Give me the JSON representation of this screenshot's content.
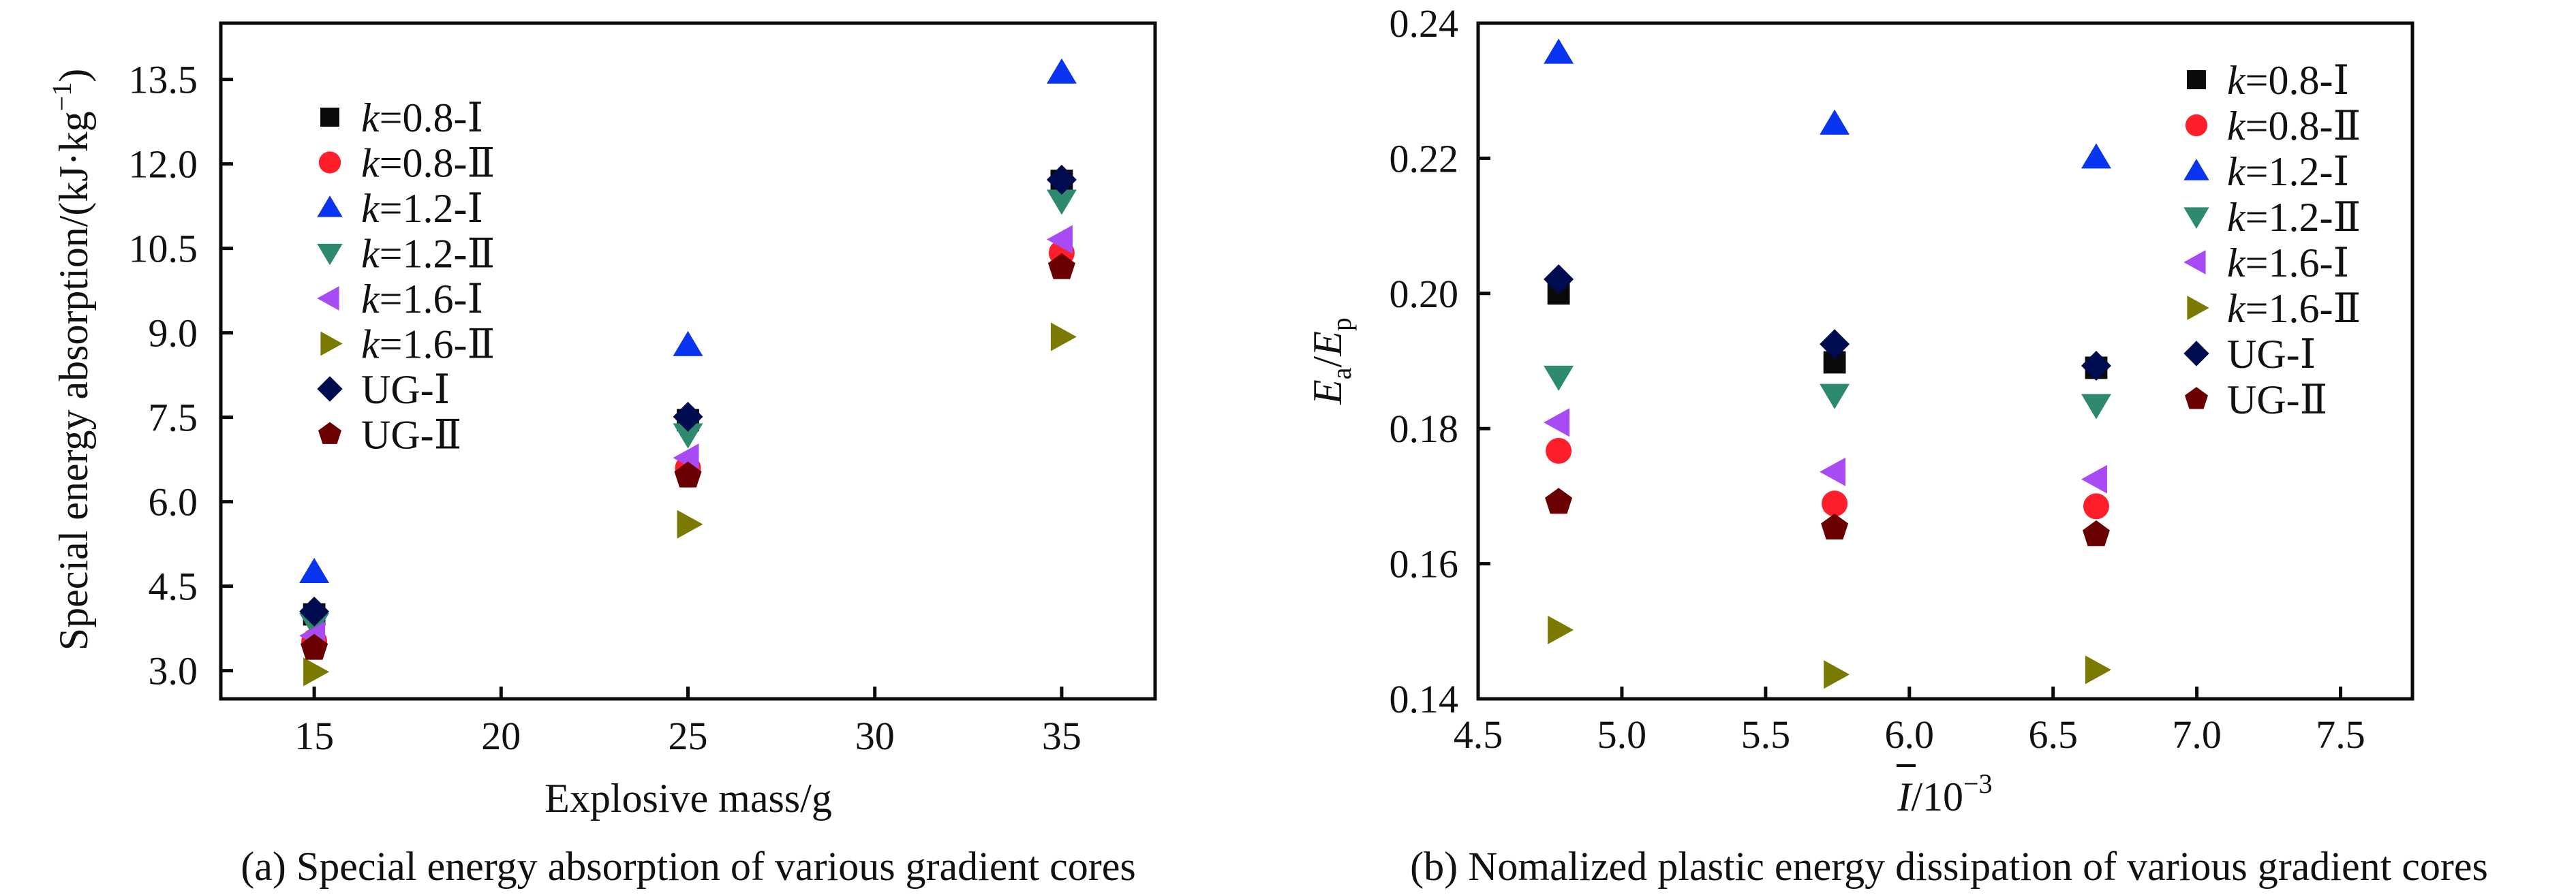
{
  "figure": {
    "captions": {
      "a": "(a) Special energy absorption of various gradient cores",
      "b": "(b) Nomalized plastic energy dissipation of various gradient cores"
    }
  },
  "series_styles": [
    {
      "name": "k=0.8-Ⅰ",
      "k_prefix": "k",
      "rest": "=0.8-Ⅰ",
      "marker": "square",
      "color": "#0a0a0a"
    },
    {
      "name": "k=0.8-Ⅱ",
      "k_prefix": "k",
      "rest": "=0.8-Ⅱ",
      "marker": "circle",
      "color": "#ff1f2a"
    },
    {
      "name": "k=1.2-Ⅰ",
      "k_prefix": "k",
      "rest": "=1.2-Ⅰ",
      "marker": "triangle-up",
      "color": "#0a35f0"
    },
    {
      "name": "k=1.2-Ⅱ",
      "k_prefix": "k",
      "rest": "=1.2-Ⅱ",
      "marker": "triangle-down",
      "color": "#2e8a6e"
    },
    {
      "name": "k=1.6-Ⅰ",
      "k_prefix": "k",
      "rest": "=1.6-Ⅰ",
      "marker": "triangle-left",
      "color": "#a84bf5"
    },
    {
      "name": "k=1.6-Ⅱ",
      "k_prefix": "k",
      "rest": "=1.6-Ⅱ",
      "marker": "triangle-right",
      "color": "#7a7a00"
    },
    {
      "name": "UG-Ⅰ",
      "k_prefix": "",
      "rest": "UG-Ⅰ",
      "marker": "diamond",
      "color": "#000c50"
    },
    {
      "name": "UG-Ⅱ",
      "k_prefix": "",
      "rest": "UG-Ⅱ",
      "marker": "pentagon",
      "color": "#6a0000"
    }
  ],
  "chart_data": [
    {
      "id": "a",
      "type": "scatter",
      "title": "",
      "caption": "(a) Special energy absorption of various gradient cores",
      "xlabel": "Explosive mass/g",
      "ylabel": "Special energy absorption/(kJ·kg⁻¹)",
      "xlim": [
        12.5,
        37.5
      ],
      "ylim": [
        2.5,
        14.5
      ],
      "xticks": [
        15,
        20,
        25,
        30,
        35
      ],
      "xtick_labels": [
        "15",
        "20",
        "25",
        "30",
        "35"
      ],
      "yticks": [
        3.0,
        4.5,
        6.0,
        7.5,
        9.0,
        10.5,
        12.0,
        13.5
      ],
      "ytick_labels": [
        "3.0",
        "4.5",
        "6.0",
        "7.5",
        "9.0",
        "10.5",
        "12.0",
        "13.5"
      ],
      "grid": false,
      "legend_position": "top-left",
      "x": [
        15,
        25,
        35
      ],
      "series": [
        {
          "name": "k=0.8-Ⅰ",
          "values": [
            4.0,
            7.45,
            11.7
          ]
        },
        {
          "name": "k=0.8-Ⅱ",
          "values": [
            3.52,
            6.6,
            10.42
          ]
        },
        {
          "name": "k=1.2-Ⅰ",
          "values": [
            4.75,
            8.78,
            13.62
          ]
        },
        {
          "name": "k=1.2-Ⅱ",
          "values": [
            3.83,
            7.2,
            11.35
          ]
        },
        {
          "name": "k=1.6-Ⅰ",
          "values": [
            3.62,
            6.78,
            10.66
          ]
        },
        {
          "name": "k=1.6-Ⅱ",
          "values": [
            2.98,
            5.6,
            8.93
          ]
        },
        {
          "name": "UG-Ⅰ",
          "values": [
            4.05,
            7.51,
            11.72
          ]
        },
        {
          "name": "UG-Ⅱ",
          "values": [
            3.4,
            6.46,
            10.16
          ]
        }
      ]
    },
    {
      "id": "b",
      "type": "scatter",
      "title": "",
      "caption": "(b) Nomalized plastic energy dissipation of various gradient cores",
      "xlabel": "Ī/10⁻³",
      "ylabel": "Ea/Ep",
      "xlim": [
        4.5,
        7.75
      ],
      "ylim": [
        0.14,
        0.24
      ],
      "xticks": [
        4.5,
        5.0,
        5.5,
        6.0,
        6.5,
        7.0,
        7.5
      ],
      "xtick_labels": [
        "4.5",
        "5.0",
        "5.5",
        "6.0",
        "6.5",
        "7.0",
        "7.5"
      ],
      "yticks": [
        0.14,
        0.16,
        0.18,
        0.2,
        0.22,
        0.24
      ],
      "ytick_labels": [
        "0.14",
        "0.16",
        "0.18",
        "0.20",
        "0.22",
        "0.24"
      ],
      "grid": false,
      "legend_position": "top-right",
      "x": [
        4.78,
        5.74,
        6.65
      ],
      "series": [
        {
          "name": "k=0.8-Ⅰ",
          "values": [
            0.2,
            0.1898,
            0.189
          ]
        },
        {
          "name": "k=0.8-Ⅱ",
          "values": [
            0.1767,
            0.1689,
            0.1685
          ]
        },
        {
          "name": "k=1.2-Ⅰ",
          "values": [
            0.2356,
            0.2251,
            0.2201
          ]
        },
        {
          "name": "k=1.2-Ⅱ",
          "values": [
            0.1877,
            0.185,
            0.1835
          ]
        },
        {
          "name": "k=1.6-Ⅰ",
          "values": [
            0.1809,
            0.1736,
            0.1725
          ]
        },
        {
          "name": "k=1.6-Ⅱ",
          "values": [
            0.1502,
            0.1436,
            0.1443
          ]
        },
        {
          "name": "UG-Ⅰ",
          "values": [
            0.2021,
            0.1925,
            0.1893
          ]
        },
        {
          "name": "UG-Ⅱ",
          "values": [
            0.1691,
            0.1653,
            0.1643
          ]
        }
      ]
    }
  ],
  "axis_text": {
    "a": {
      "ylabel_main": "Special energy absorption/(kJ·kg",
      "ylabel_sup": "−1",
      "ylabel_close": ")",
      "xlabel": "Explosive mass/g"
    },
    "b": {
      "ylabel_E1": "E",
      "ylabel_sub1": "a",
      "ylabel_slash": "/",
      "ylabel_E2": "E",
      "ylabel_sub2": "p",
      "xlabel_I": "I",
      "xlabel_rest": "/10",
      "xlabel_sup": "−3"
    }
  }
}
